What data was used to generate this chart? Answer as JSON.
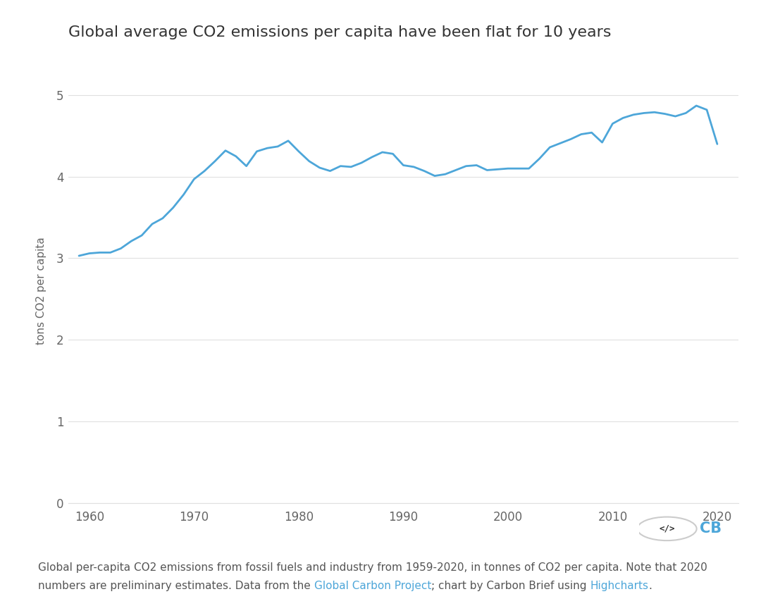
{
  "title": "Global average CO2 emissions per capita have been flat for 10 years",
  "ylabel": "tons CO2 per capita",
  "background_color": "#ffffff",
  "line_color": "#4da6d9",
  "grid_color": "#e0e0e0",
  "tick_color": "#666666",
  "title_color": "#333333",
  "ylim": [
    0,
    5.2
  ],
  "yticks": [
    0,
    1,
    2,
    3,
    4,
    5
  ],
  "xlim": [
    1958,
    2022
  ],
  "xticks": [
    1960,
    1970,
    1980,
    1990,
    2000,
    2010,
    2020
  ],
  "link_color": "#4da6d9",
  "footnote_color": "#555555",
  "years": [
    1959,
    1960,
    1961,
    1962,
    1963,
    1964,
    1965,
    1966,
    1967,
    1968,
    1969,
    1970,
    1971,
    1972,
    1973,
    1974,
    1975,
    1976,
    1977,
    1978,
    1979,
    1980,
    1981,
    1982,
    1983,
    1984,
    1985,
    1986,
    1987,
    1988,
    1989,
    1990,
    1991,
    1992,
    1993,
    1994,
    1995,
    1996,
    1997,
    1998,
    1999,
    2000,
    2001,
    2002,
    2003,
    2004,
    2005,
    2006,
    2007,
    2008,
    2009,
    2010,
    2011,
    2012,
    2013,
    2014,
    2015,
    2016,
    2017,
    2018,
    2019,
    2020
  ],
  "values": [
    3.03,
    3.06,
    3.07,
    3.07,
    3.12,
    3.21,
    3.28,
    3.42,
    3.49,
    3.62,
    3.78,
    3.97,
    4.07,
    4.19,
    4.32,
    4.25,
    4.13,
    4.31,
    4.35,
    4.37,
    4.44,
    4.31,
    4.19,
    4.11,
    4.07,
    4.13,
    4.12,
    4.17,
    4.24,
    4.3,
    4.28,
    4.14,
    4.12,
    4.07,
    4.01,
    4.03,
    4.08,
    4.13,
    4.14,
    4.08,
    4.09,
    4.1,
    4.1,
    4.1,
    4.22,
    4.36,
    4.41,
    4.46,
    4.52,
    4.54,
    4.42,
    4.65,
    4.72,
    4.76,
    4.78,
    4.79,
    4.77,
    4.74,
    4.78,
    4.87,
    4.82,
    4.4
  ],
  "logo_circle_color": "#cccccc",
  "logo_text_color": "#333333"
}
